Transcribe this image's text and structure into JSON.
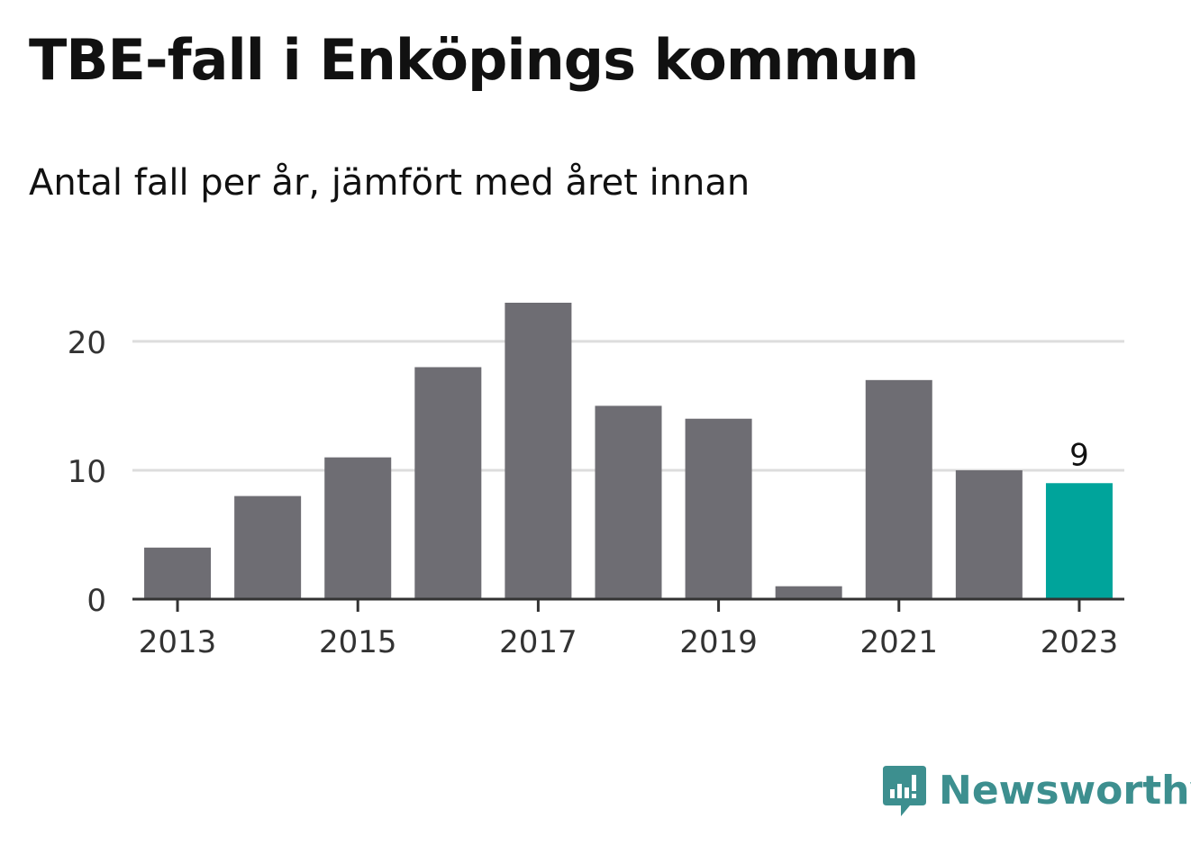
{
  "header": {
    "title": "TBE-fall i Enköpings kommun",
    "subtitle": "Antal fall per år, jämfört med året innan"
  },
  "chart_data": {
    "type": "bar",
    "categories": [
      "2013",
      "2014",
      "2015",
      "2016",
      "2017",
      "2018",
      "2019",
      "2020",
      "2021",
      "2022",
      "2023"
    ],
    "values": [
      4,
      8,
      11,
      18,
      23,
      15,
      14,
      1,
      17,
      10,
      9
    ],
    "x_tick_labels": [
      "2013",
      "2015",
      "2017",
      "2019",
      "2021",
      "2023"
    ],
    "y_ticks": [
      0,
      10,
      20
    ],
    "ylim": [
      0,
      23
    ],
    "highlight_index": 10,
    "highlight_label": "9",
    "grid": true,
    "colors": {
      "bar": "#6e6d73",
      "highlight": "#00a49b",
      "grid": "#dddddd",
      "axis": "#333333"
    }
  },
  "brand": {
    "name": "Newsworthy",
    "icon": "newsworthy-logo-icon",
    "color": "#3d8f8f"
  }
}
